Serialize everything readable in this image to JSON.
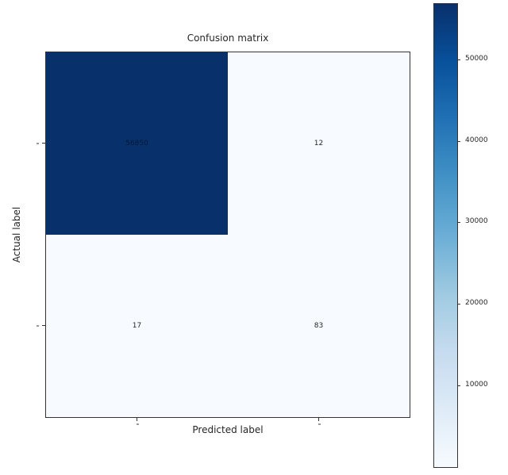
{
  "chart_data": {
    "type": "heatmap",
    "title": "Confusion matrix",
    "xlabel": "Predicted label",
    "ylabel": "Actual label",
    "matrix": [
      [
        56850,
        12
      ],
      [
        17,
        83
      ]
    ],
    "cells": [
      {
        "row": 0,
        "col": 0,
        "value": "56850",
        "color": "#08306b",
        "text_color": "#021a3a"
      },
      {
        "row": 0,
        "col": 1,
        "value": "12",
        "color": "#f7fbff",
        "text_color": "#262626"
      },
      {
        "row": 1,
        "col": 0,
        "value": "17",
        "color": "#f7fbff",
        "text_color": "#262626"
      },
      {
        "row": 1,
        "col": 1,
        "value": "83",
        "color": "#f7fbff",
        "text_color": "#262626"
      }
    ],
    "x_tick_labels": [
      "",
      ""
    ],
    "y_tick_labels": [
      "",
      ""
    ],
    "colormap": "Blues",
    "colormap_stops": [
      "#f7fbff",
      "#deebf7",
      "#c6dbef",
      "#9ecae1",
      "#6baed6",
      "#4292c6",
      "#2171b5",
      "#08519c",
      "#08306b"
    ],
    "vmin": 0,
    "vmax": 56850,
    "colorbar_ticks": [
      10000,
      20000,
      30000,
      40000,
      50000
    ],
    "legend_position": "right-colorbar",
    "grid": false
  }
}
